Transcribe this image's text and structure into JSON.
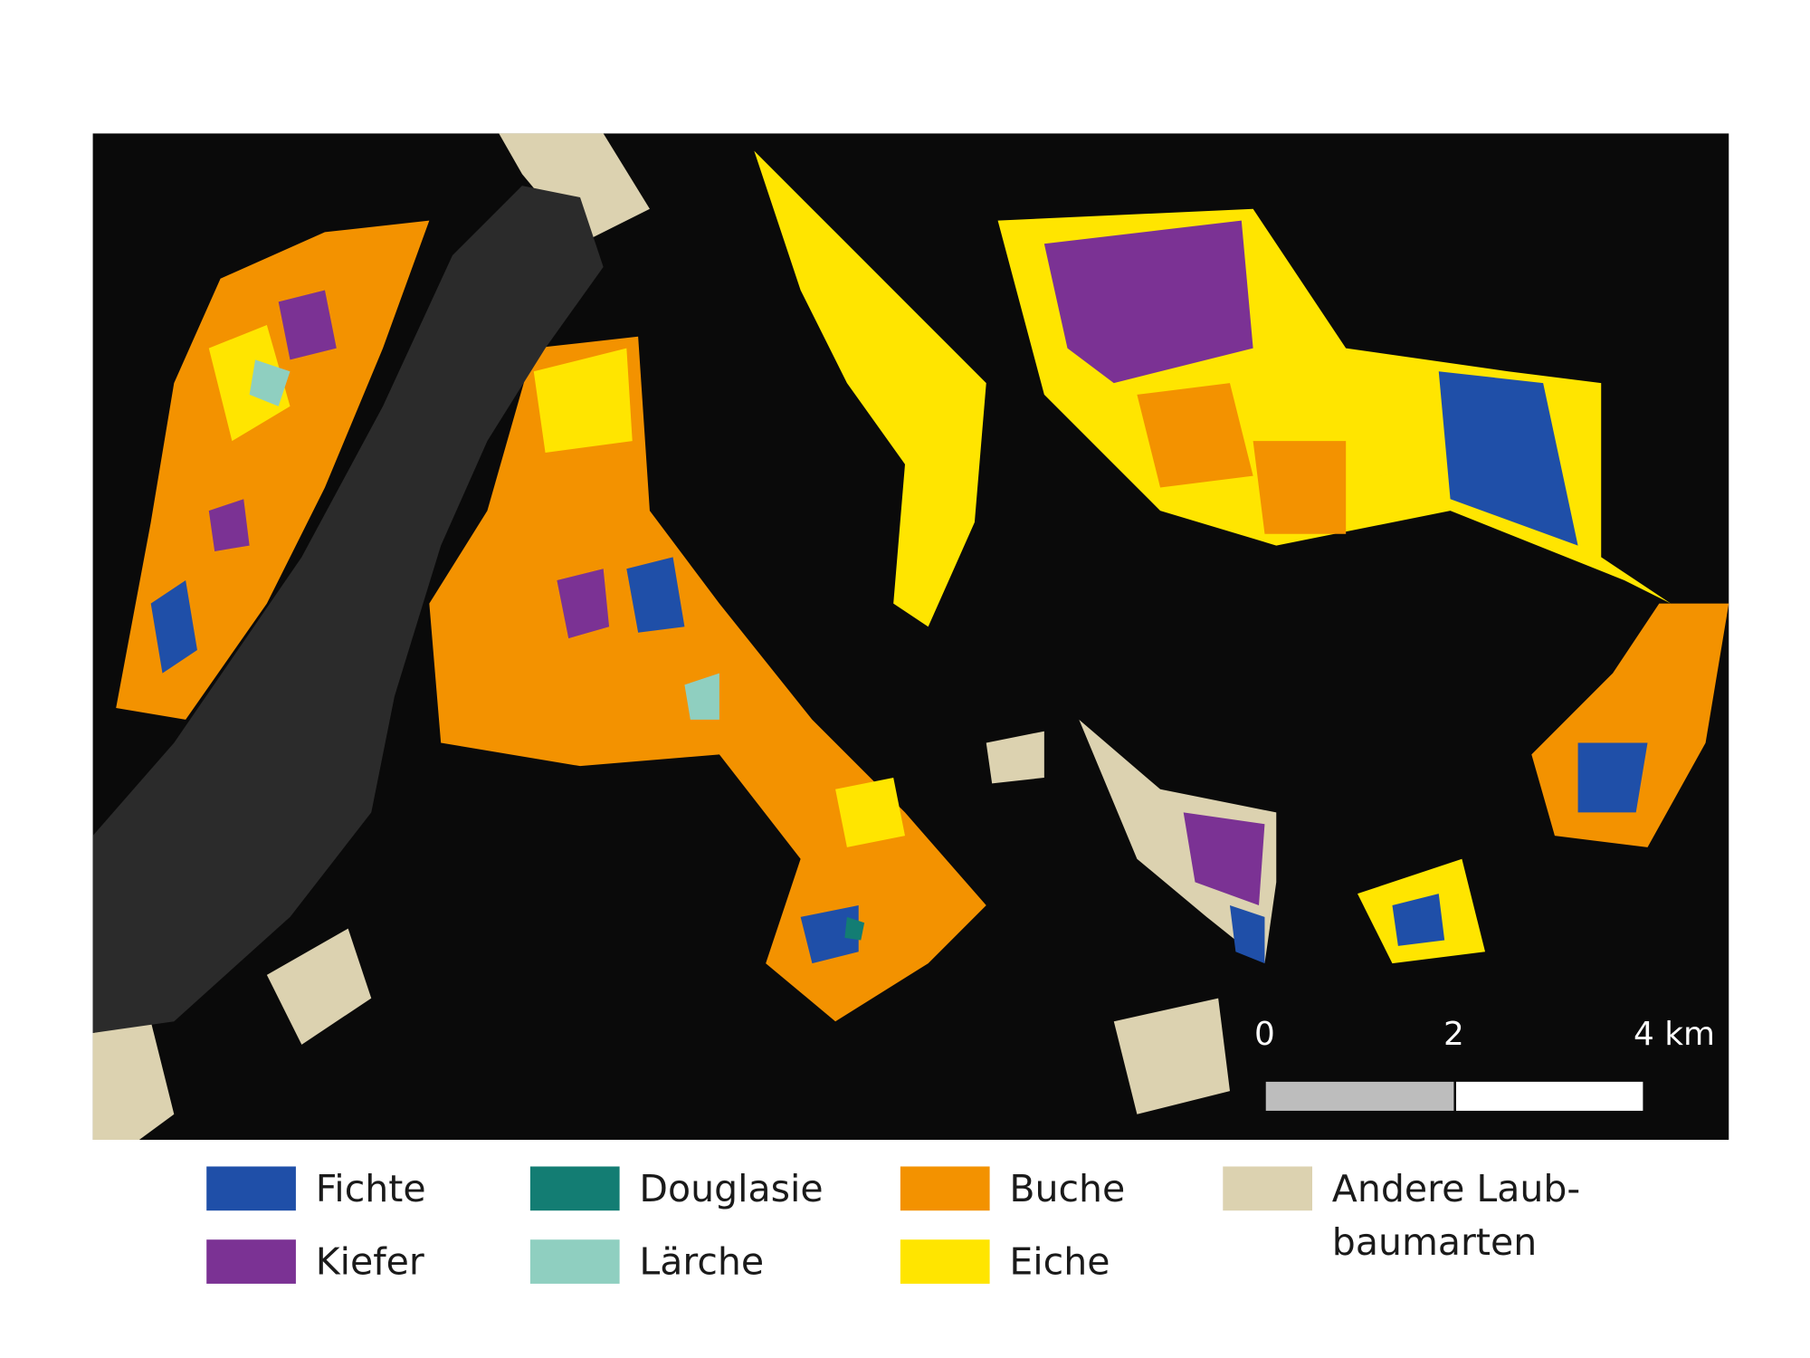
{
  "legend": {
    "items": [
      {
        "lines": [
          "Fichte"
        ],
        "color": "#1f4fa8"
      },
      {
        "lines": [
          "Kiefer"
        ],
        "color": "#7b3294"
      },
      {
        "lines": [
          "Douglasie"
        ],
        "color": "#137d73"
      },
      {
        "lines": [
          "Lärche"
        ],
        "color": "#8fcfc0"
      },
      {
        "lines": [
          "Buche"
        ],
        "color": "#f39200"
      },
      {
        "lines": [
          "Eiche"
        ],
        "color": "#ffe500"
      },
      {
        "lines": [
          "Andere Laub-",
          "baumarten"
        ],
        "color": "#dcd2b0"
      }
    ]
  },
  "scale_bar": {
    "labels": [
      "0",
      "2",
      "4 km"
    ]
  }
}
